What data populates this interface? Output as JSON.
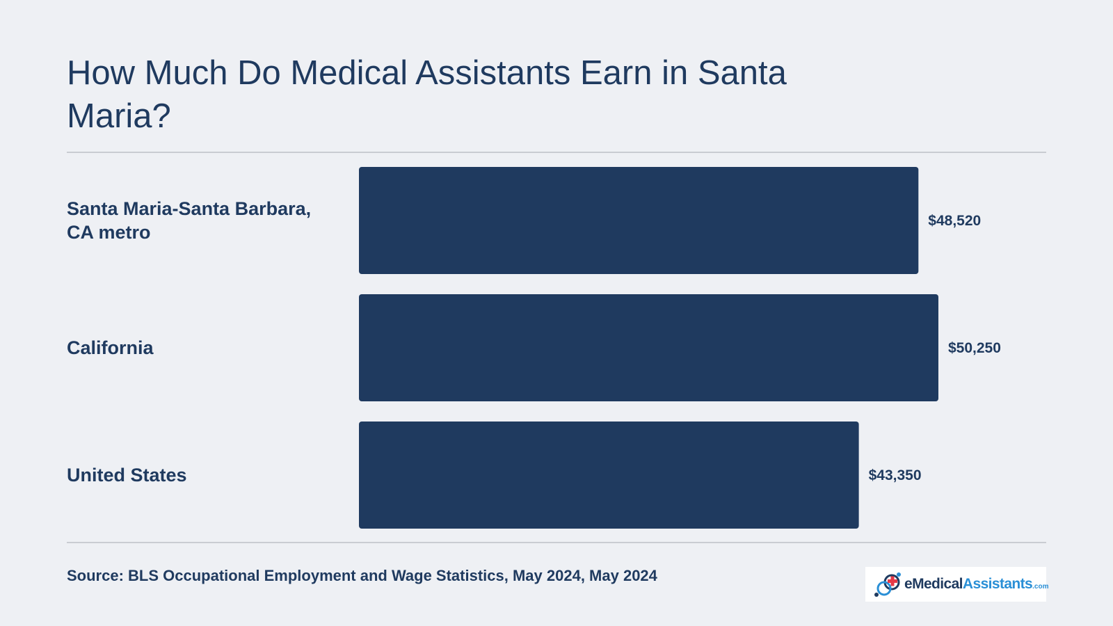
{
  "title": "How Much Do Medical Assistants Earn in Santa Maria?",
  "source": "Source: BLS Occupational Employment and Wage Statistics, May 2024, May 2024",
  "logo": {
    "part1": "eMedical",
    "part2": "Assistants",
    "part3": ".com",
    "icon": "medical-cross-logo-icon"
  },
  "colors": {
    "background": "#eef0f4",
    "bar": "#1f3a5f",
    "text": "#1f3a5f",
    "rule": "#c9ccd2",
    "logo_accent": "#2a8fd6",
    "logo_cross": "#e63946"
  },
  "chart_data": {
    "type": "bar",
    "orientation": "horizontal",
    "categories": [
      [
        "Santa Maria-Santa Barbara,",
        "CA metro"
      ],
      [
        "California"
      ],
      [
        "United States"
      ]
    ],
    "values": [
      48520,
      50250,
      43350
    ],
    "value_labels": [
      "$48,520",
      "$50,250",
      "$43,350"
    ],
    "xlim": [
      0,
      52000
    ],
    "grid": false,
    "legend": "none"
  }
}
